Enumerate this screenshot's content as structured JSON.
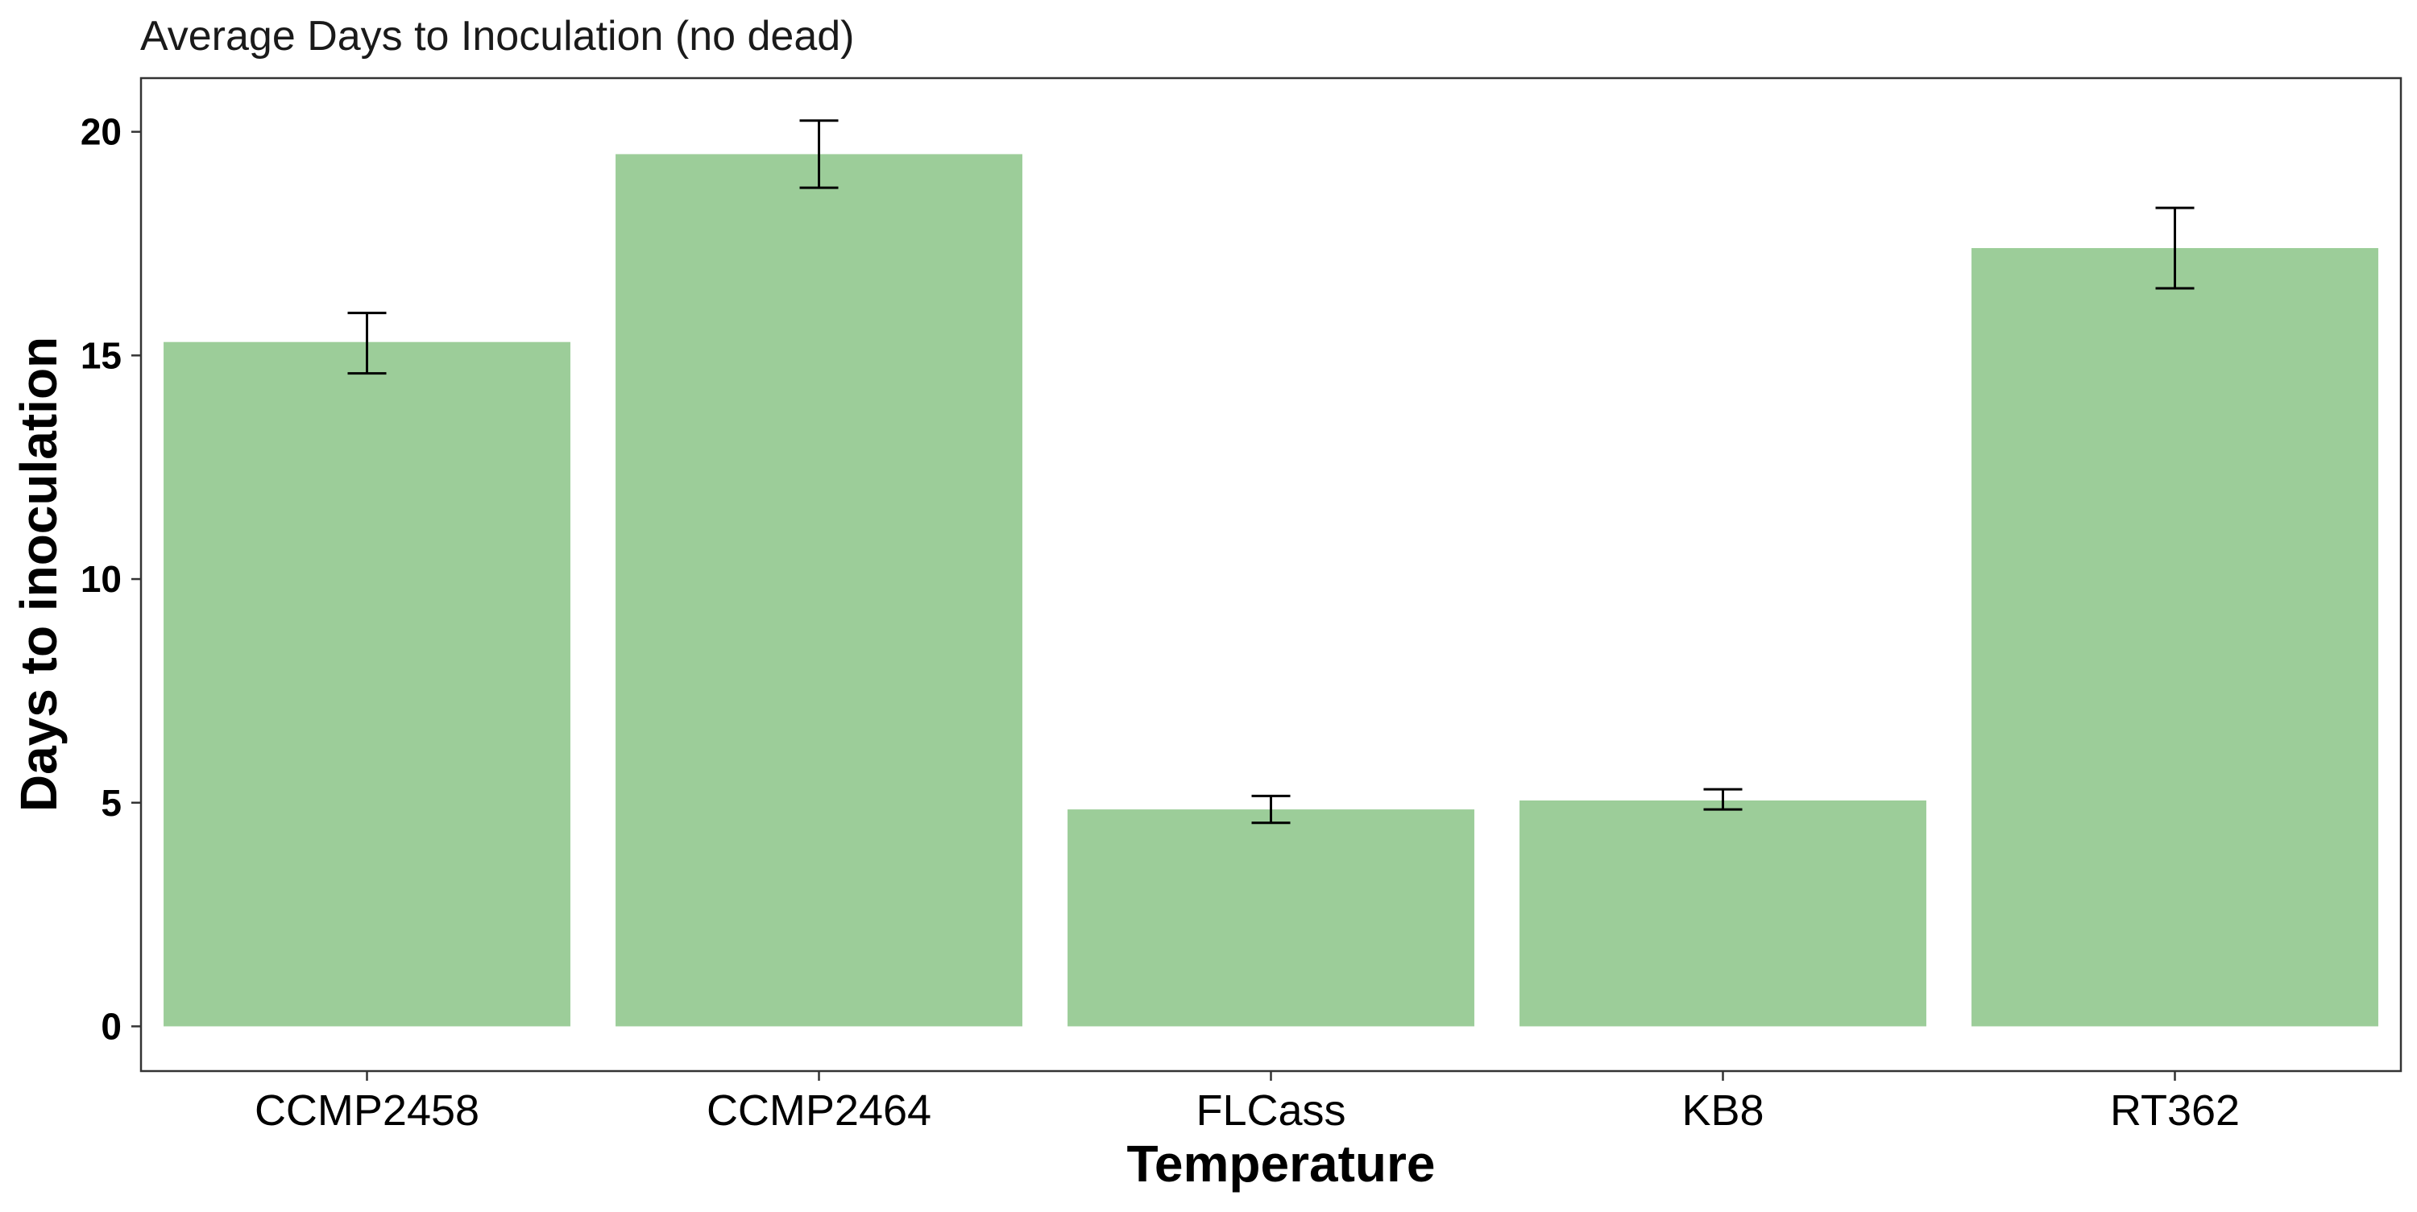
{
  "chart_data": {
    "type": "bar",
    "title": "Average Days to Inoculation (no dead)",
    "xlabel": "Temperature",
    "ylabel": "Days to inoculation",
    "categories": [
      "CCMP2458",
      "CCMP2464",
      "FLCass",
      "KB8",
      "RT362"
    ],
    "values": [
      15.3,
      19.5,
      4.85,
      5.05,
      17.4
    ],
    "error_low": [
      14.6,
      18.75,
      4.55,
      4.85,
      16.5
    ],
    "error_high": [
      15.95,
      20.25,
      5.15,
      5.3,
      18.3
    ],
    "yticks": [
      0,
      5,
      10,
      15,
      20
    ],
    "ylim": [
      -1,
      21.2
    ],
    "grid": false,
    "bar_color": "#9ccd99",
    "error_bar_color": "#000000"
  }
}
